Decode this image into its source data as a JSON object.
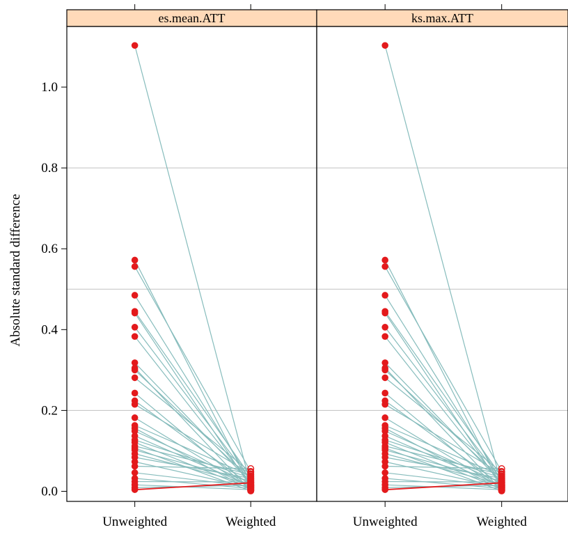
{
  "chart_data": {
    "type": "line",
    "ylabel": "Absolute standard difference",
    "ylim": [
      -0.025,
      1.15
    ],
    "yticks": [
      0.0,
      0.2,
      0.4,
      0.6,
      0.8,
      1.0
    ],
    "ytick_labels": [
      "0.0",
      "0.2",
      "0.4",
      "0.6",
      "0.8",
      "1.0"
    ],
    "categories": [
      "Unweighted",
      "Weighted"
    ],
    "reference_lines": [
      0.2,
      0.5,
      0.8
    ],
    "grid": false,
    "colors": {
      "strip_fill": "#ffdab9",
      "segment": "#86bcbc",
      "highlight_segment": "#e31a1c",
      "point": "#e31a1c",
      "reference_line": "#c0c0c0"
    },
    "panels": [
      {
        "name": "es.mean.ATT",
        "unweighted": [
          1.103,
          0.572,
          0.556,
          0.485,
          0.445,
          0.441,
          0.406,
          0.383,
          0.318,
          0.305,
          0.3,
          0.281,
          0.243,
          0.224,
          0.215,
          0.182,
          0.163,
          0.156,
          0.149,
          0.137,
          0.127,
          0.121,
          0.112,
          0.107,
          0.102,
          0.093,
          0.084,
          0.073,
          0.062,
          0.046,
          0.032,
          0.024,
          0.016,
          0.009,
          0.004
        ],
        "weighted": [
          0.014,
          0.01,
          0.049,
          0.026,
          0.036,
          0.011,
          0.028,
          0.018,
          0.022,
          0.002,
          0.03,
          0.047,
          0.004,
          0.015,
          0.043,
          0.008,
          0.038,
          0.003,
          0.02,
          0.013,
          0.033,
          0.006,
          0.041,
          0.001,
          0.025,
          0.017,
          0.032,
          0.009,
          0.056,
          0.012,
          0.007,
          0.023,
          0.004,
          0.015,
          0.021
        ],
        "highlight": [
          34
        ]
      },
      {
        "name": "ks.max.ATT",
        "unweighted": [
          1.103,
          0.572,
          0.556,
          0.485,
          0.445,
          0.441,
          0.406,
          0.383,
          0.318,
          0.305,
          0.3,
          0.281,
          0.243,
          0.224,
          0.215,
          0.182,
          0.163,
          0.156,
          0.149,
          0.137,
          0.127,
          0.121,
          0.112,
          0.107,
          0.102,
          0.093,
          0.084,
          0.073,
          0.062,
          0.046,
          0.032,
          0.024,
          0.016,
          0.009,
          0.004
        ],
        "weighted": [
          0.014,
          0.01,
          0.049,
          0.026,
          0.036,
          0.011,
          0.028,
          0.018,
          0.022,
          0.002,
          0.03,
          0.047,
          0.004,
          0.015,
          0.043,
          0.008,
          0.038,
          0.003,
          0.02,
          0.013,
          0.033,
          0.006,
          0.041,
          0.001,
          0.025,
          0.017,
          0.032,
          0.009,
          0.056,
          0.012,
          0.007,
          0.023,
          0.004,
          0.015,
          0.021
        ],
        "highlight": [
          34
        ]
      }
    ]
  }
}
